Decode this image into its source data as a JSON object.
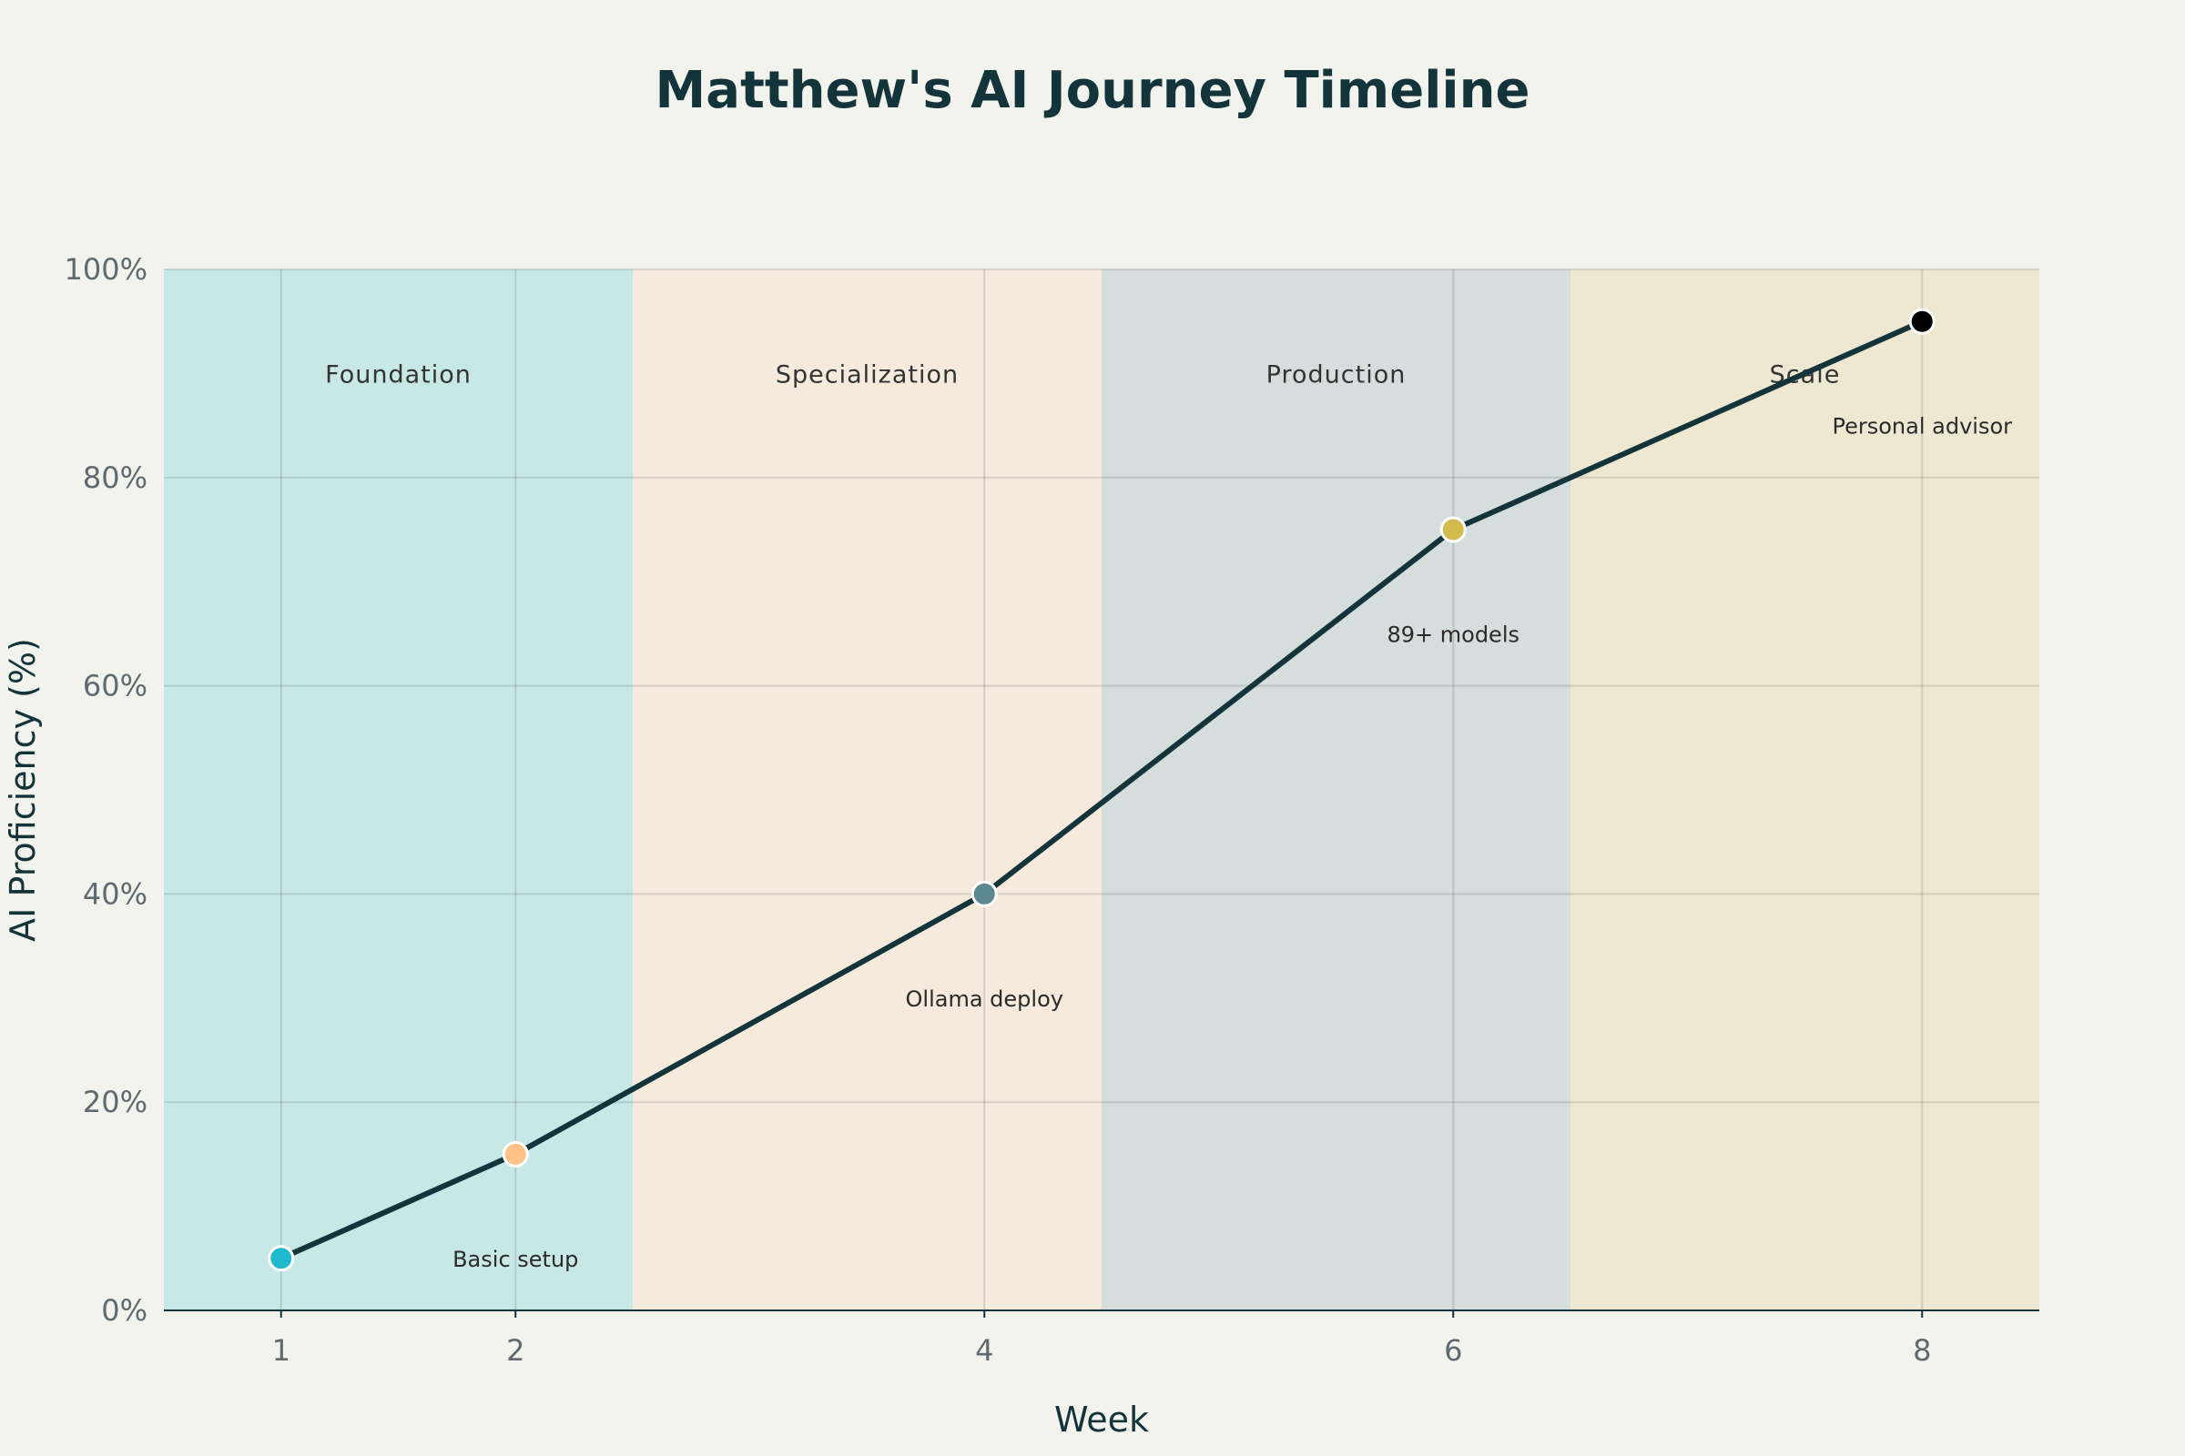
{
  "chart_data": {
    "type": "line",
    "title": "Matthew's AI Journey Timeline",
    "xlabel": "Week",
    "ylabel": "AI Proficiency (%)",
    "xlim": [
      0.5,
      8.5
    ],
    "ylim": [
      0,
      100
    ],
    "x_ticks": [
      1,
      2,
      4,
      6,
      8
    ],
    "y_ticks": [
      0,
      20,
      40,
      60,
      80,
      100
    ],
    "y_tick_suffix": "%",
    "grid": true,
    "line_color": "#13343b",
    "points": [
      {
        "x": 1,
        "y": 5,
        "color": "#1fb8cd"
      },
      {
        "x": 2,
        "y": 15,
        "color": "#ffc185"
      },
      {
        "x": 4,
        "y": 40,
        "color": "#5d878f"
      },
      {
        "x": 6,
        "y": 75,
        "color": "#d2ba4c"
      },
      {
        "x": 8,
        "y": 95,
        "color": "#000000"
      }
    ],
    "phases": [
      {
        "label": "Foundation",
        "x0": 0.5,
        "x1": 2.5,
        "color": "#c8e8e8"
      },
      {
        "label": "Specialization",
        "x0": 2.5,
        "x1": 4.5,
        "color": "#f5eadc"
      },
      {
        "label": "Production",
        "x0": 4.5,
        "x1": 6.5,
        "color": "#d5dedd"
      },
      {
        "label": "Scale",
        "x0": 6.5,
        "x1": 8.5,
        "color": "#eee7d1"
      }
    ],
    "phase_label_y": 90,
    "annotations": [
      {
        "text": "Basic setup",
        "x": 2,
        "y": 5
      },
      {
        "text": "Ollama deploy",
        "x": 4,
        "y": 30
      },
      {
        "text": "89+ models",
        "x": 6,
        "y": 65
      },
      {
        "text": "Personal advisor",
        "x": 8,
        "y": 85
      }
    ]
  }
}
